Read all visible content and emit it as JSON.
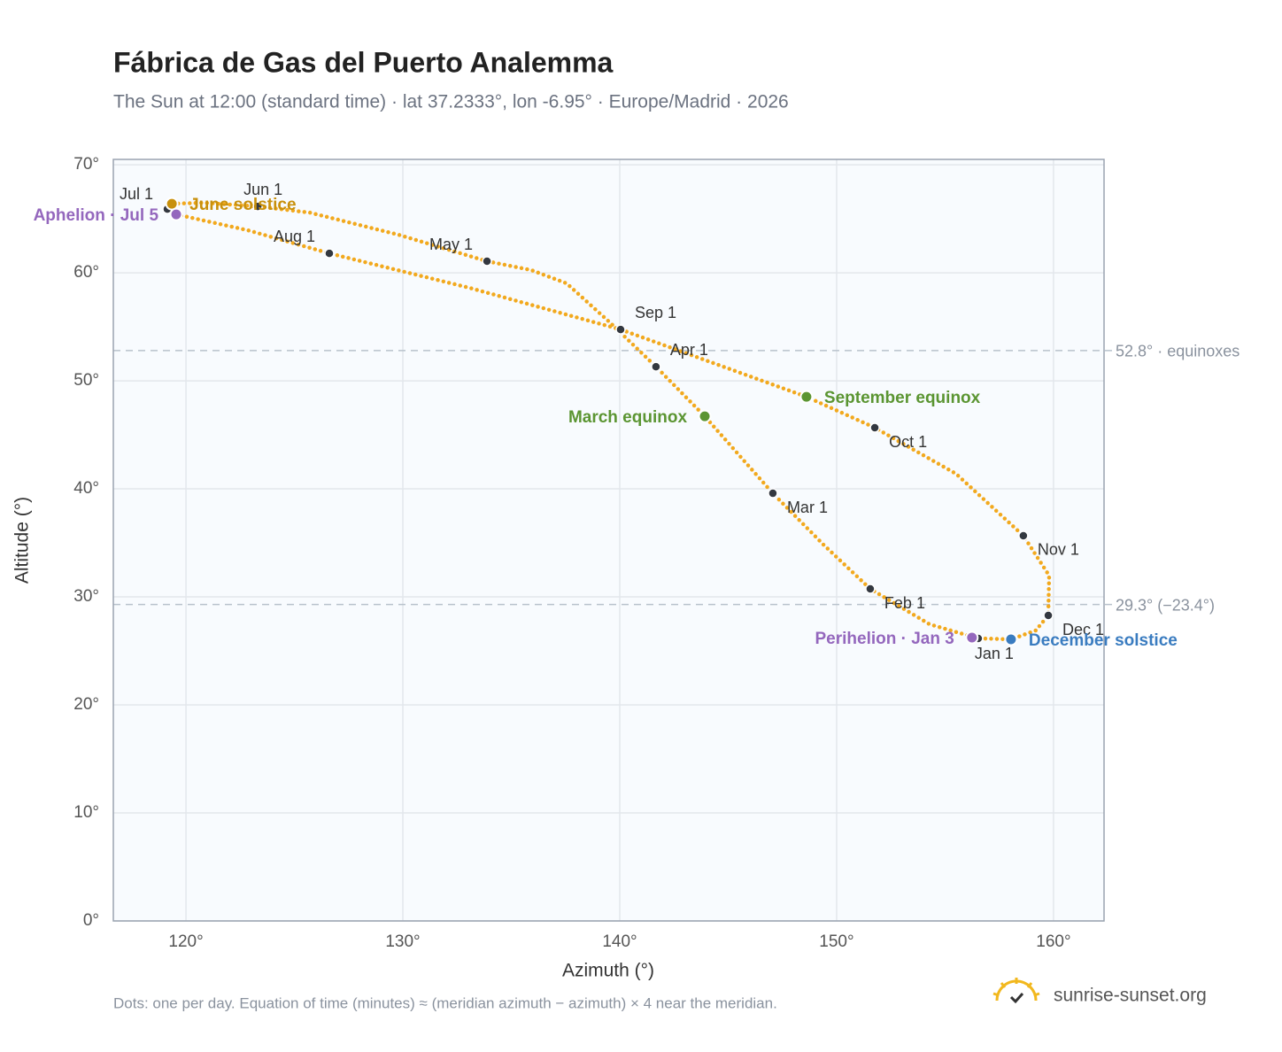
{
  "chart_data": {
    "type": "analemma",
    "title": "Fábrica de Gas del Puerto Analemma",
    "subtitle": "The Sun at 12:00 (standard time) · lat 37.2333°, lon -6.95° · Europe/Madrid · 2026",
    "x_label": "Azimuth (°)",
    "y_label": "Altitude (°)",
    "footnote": "Dots: one per day. Equation of time (minutes) ≈ (meridian azimuth − azimuth) × 4 near the meridian.",
    "brand": "sunrise-sunset.org",
    "xlim": [
      116.65,
      162.33
    ],
    "ylim": [
      0,
      70.5
    ],
    "grid": true,
    "xticks": [
      {
        "value": 120,
        "label": "120°"
      },
      {
        "value": 130,
        "label": "130°"
      },
      {
        "value": 140,
        "label": "140°"
      },
      {
        "value": 150,
        "label": "150°"
      },
      {
        "value": 160,
        "label": "160°"
      }
    ],
    "yticks": [
      {
        "value": 0,
        "label": "0°"
      },
      {
        "value": 10,
        "label": "10°"
      },
      {
        "value": 20,
        "label": "20°"
      },
      {
        "value": 30,
        "label": "30°"
      },
      {
        "value": 40,
        "label": "40°"
      },
      {
        "value": 50,
        "label": "50°"
      },
      {
        "value": 60,
        "label": "60°"
      },
      {
        "value": 70,
        "label": "70°"
      }
    ],
    "path": {
      "color": "#f2a91e",
      "x": [
        156.53,
        154.29,
        151.55,
        149.39,
        147.06,
        143.92,
        141.67,
        139.59,
        137.55,
        135.92,
        133.88,
        129.8,
        125.71,
        123.31,
        120.82,
        119.35,
        119.14,
        119.55,
        122.86,
        126.61,
        133.06,
        140.04,
        148.61,
        151.76,
        155.51,
        158.61,
        159.8,
        159.76,
        159.18,
        158.04,
        156.73
      ],
      "y": [
        26.15,
        27.46,
        30.74,
        34.84,
        39.59,
        46.72,
        51.31,
        55.33,
        59.02,
        60.25,
        61.07,
        63.52,
        65.57,
        66.15,
        66.48,
        66.39,
        65.9,
        65.41,
        63.93,
        61.8,
        58.61,
        54.75,
        48.52,
        45.66,
        41.39,
        35.66,
        31.97,
        28.28,
        26.89,
        26.07,
        26.15
      ]
    },
    "months": {
      "color": "#333840",
      "labels": [
        "Jan 1",
        "Feb 1",
        "Mar 1",
        "Apr 1",
        "May 1",
        "Jun 1",
        "Jul 1",
        "Aug 1",
        "Sep 1",
        "Oct 1",
        "Nov 1",
        "Dec 1"
      ],
      "x": [
        156.53,
        151.55,
        147.06,
        141.67,
        133.88,
        123.31,
        119.14,
        126.61,
        140.04,
        151.76,
        158.61,
        159.76
      ],
      "y": [
        26.15,
        30.74,
        39.59,
        51.31,
        61.07,
        66.15,
        65.9,
        61.8,
        54.75,
        45.66,
        35.66,
        28.28
      ]
    },
    "events": [
      {
        "label": "June solstice",
        "x": 119.35,
        "y": 66.39,
        "color": "#c8900c"
      },
      {
        "label": "Aphelion · Jul 5",
        "x": 119.55,
        "y": 65.41,
        "color": "#9467bd"
      },
      {
        "label": "March equinox",
        "x": 143.92,
        "y": 46.72,
        "color": "#5b9532"
      },
      {
        "label": "September equinox",
        "x": 148.61,
        "y": 48.52,
        "color": "#5b9532"
      },
      {
        "label": "Perihelion · Jan 3",
        "x": 156.24,
        "y": 26.23,
        "color": "#9467bd"
      },
      {
        "label": "December solstice",
        "x": 158.04,
        "y": 26.07,
        "color": "#3a7cc0"
      }
    ],
    "reference_lines": [
      {
        "value": 52.8,
        "label": "52.8° · equinoxes"
      },
      {
        "value": 29.3,
        "label": "29.3° (−23.4°)"
      }
    ]
  }
}
